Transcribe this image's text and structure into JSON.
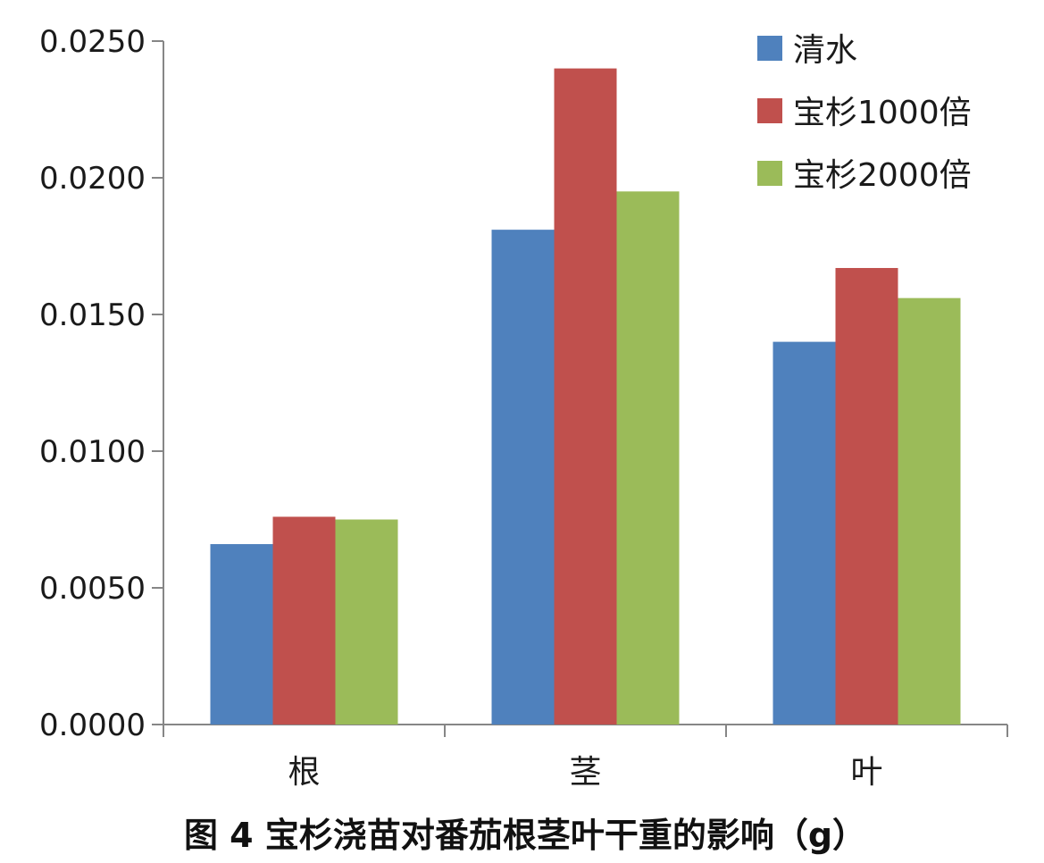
{
  "chart_data": {
    "type": "bar",
    "categories": [
      "根",
      "茎",
      "叶"
    ],
    "series": [
      {
        "name": "清水",
        "values": [
          0.0066,
          0.0181,
          0.014
        ],
        "color": "#4F81BD"
      },
      {
        "name": "宝杉1000倍",
        "values": [
          0.0076,
          0.024,
          0.0167
        ],
        "color": "#C0504D"
      },
      {
        "name": "宝杉2000倍",
        "values": [
          0.0075,
          0.0195,
          0.0156
        ],
        "color": "#9BBB59"
      }
    ],
    "title": "图 4  宝杉浇苗对番茄根茎叶干重的影响（g）",
    "xlabel": "",
    "ylabel": "",
    "ylim": [
      0,
      0.025
    ],
    "yticks": [
      "0.0000",
      "0.0050",
      "0.0100",
      "0.0150",
      "0.0200",
      "0.0250"
    ],
    "ytick_values": [
      0,
      0.005,
      0.01,
      0.015,
      0.02,
      0.025
    ],
    "grid": false,
    "legend_position": "top-right"
  }
}
